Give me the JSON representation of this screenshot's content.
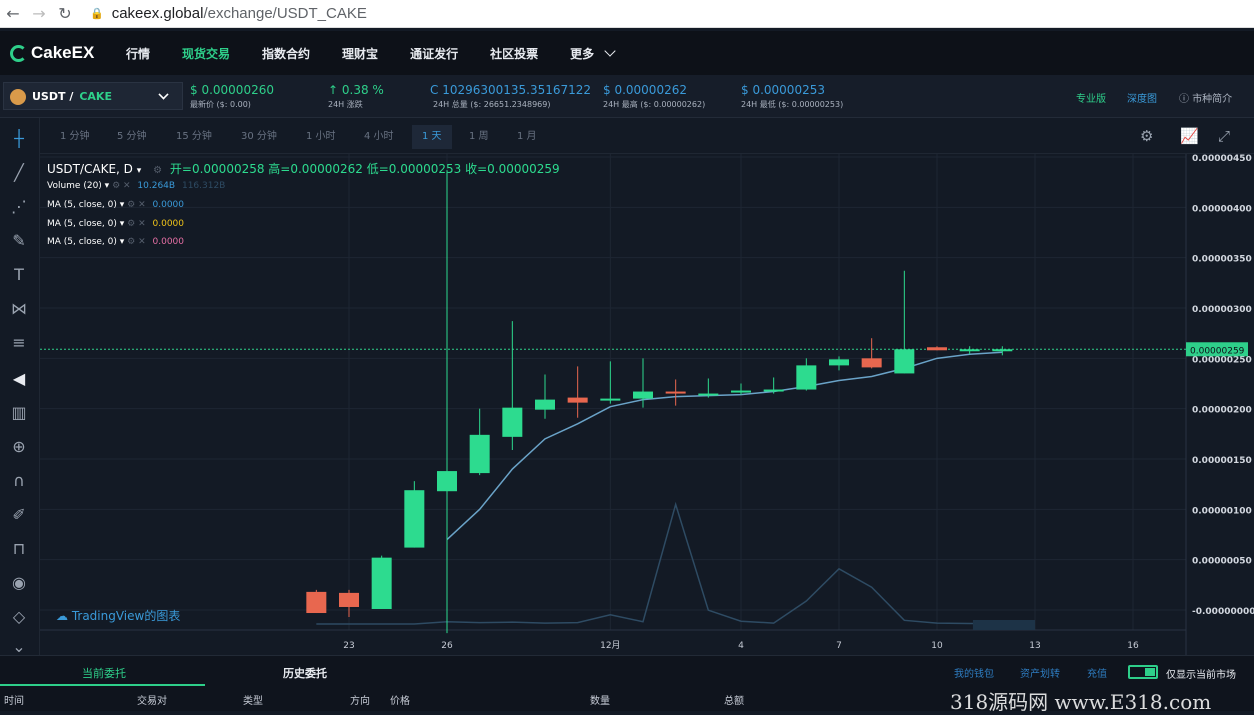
{
  "browser": {
    "domain": "cakeex.global",
    "path": "/exchange/USDT_CAKE"
  },
  "nav": {
    "logo": "CakeEX",
    "items": [
      "行情",
      "现货交易",
      "指数合约",
      "理财宝",
      "通证发行",
      "社区投票",
      "更多"
    ]
  },
  "ticker": {
    "pair_base": "USDT /",
    "pair_quote": "CAKE",
    "last_price": "$ 0.00000260",
    "last_price_label": "最新价 ($: 0.00)",
    "change": "0.38 %",
    "change_label": "24H 涨跌",
    "volume": "C 10296300135.35167122",
    "volume_label": "24H 总量 ($: 26651.2348969)",
    "high": "$ 0.00000262",
    "high_label": "24H 最高 ($: 0.00000262)",
    "low": "$ 0.00000253",
    "low_label": "24H 最低 ($: 0.00000253)",
    "pro": "专业版",
    "depth": "深度图",
    "intro": "市种简介"
  },
  "timeframes": [
    "1 分钟",
    "5 分钟",
    "15 分钟",
    "30 分钟",
    "1 小时",
    "4 小时",
    "1 天",
    "1 周",
    "1 月"
  ],
  "active_timeframe": "1 天",
  "legend": {
    "symbol": "USDT/CAKE, D",
    "ohlc": "开=0.00000258  高=0.00000262  低=0.00000253  收=0.00000259",
    "volume_label": "Volume (20)",
    "volume_value": "10.264B",
    "volume_ma": "116.312B",
    "ma1_label": "MA (5, close, 0)",
    "ma1_value": "0.0000",
    "ma2_label": "MA (5, close, 0)",
    "ma2_value": "0.0000",
    "ma3_label": "MA (5, close, 0)",
    "ma3_value": "0.0000",
    "tradingview": "TradingView的图表"
  },
  "chart_data": {
    "type": "candlestick",
    "y_ticks": [
      "0.00000450",
      "0.00000400",
      "0.00000350",
      "0.00000300",
      "0.00000250",
      "0.00000200",
      "0.00000150",
      "0.00000100",
      "0.00000050",
      "-0.00000000"
    ],
    "y_tick_values": [
      450,
      400,
      350,
      300,
      250,
      200,
      150,
      100,
      50,
      0
    ],
    "x_ticks": [
      "23",
      "26",
      "12月",
      "4",
      "7",
      "10",
      "13",
      "16"
    ],
    "x_tick_days": [
      23,
      26,
      31,
      35,
      38,
      41,
      44,
      47
    ],
    "current_price_label": "0.00000259",
    "current_price": 259,
    "value_unit": "1e-8",
    "ylim": [
      -15,
      450
    ],
    "candles": [
      {
        "day": 22,
        "o": 18,
        "h": 20,
        "l": -3,
        "c": -3
      },
      {
        "day": 23,
        "o": 17,
        "h": 20,
        "l": -7,
        "c": 3
      },
      {
        "day": 24,
        "o": 1,
        "h": 54,
        "l": 1,
        "c": 52
      },
      {
        "day": 25,
        "o": 62,
        "h": 128,
        "l": 62,
        "c": 119
      },
      {
        "day": 26,
        "o": 118,
        "h": 437,
        "l": -23,
        "c": 138
      },
      {
        "day": 27,
        "o": 136,
        "h": 200,
        "l": 134,
        "c": 174
      },
      {
        "day": 28,
        "o": 172,
        "h": 287,
        "l": 159,
        "c": 201
      },
      {
        "day": 29,
        "o": 199,
        "h": 234,
        "l": 190,
        "c": 209
      },
      {
        "day": 30,
        "o": 211,
        "h": 242,
        "l": 191,
        "c": 206
      },
      {
        "day": 31,
        "o": 209,
        "h": 247,
        "l": 205,
        "c": 210
      },
      {
        "day": 32,
        "o": 210,
        "h": 250,
        "l": 201,
        "c": 217
      },
      {
        "day": 33,
        "o": 217,
        "h": 229,
        "l": 203,
        "c": 215
      },
      {
        "day": 34,
        "o": 215,
        "h": 230,
        "l": 211,
        "c": 215
      },
      {
        "day": 35,
        "o": 216,
        "h": 225,
        "l": 214,
        "c": 218
      },
      {
        "day": 36,
        "o": 218,
        "h": 231,
        "l": 215,
        "c": 219
      },
      {
        "day": 37,
        "o": 219,
        "h": 250,
        "l": 218,
        "c": 243
      },
      {
        "day": 38,
        "o": 243,
        "h": 252,
        "l": 238,
        "c": 249
      },
      {
        "day": 39,
        "o": 250,
        "h": 270,
        "l": 240,
        "c": 241
      },
      {
        "day": 40,
        "o": 235,
        "h": 337,
        "l": 235,
        "c": 259
      },
      {
        "day": 41,
        "o": 261,
        "h": 262,
        "l": 258,
        "c": 258
      },
      {
        "day": 42,
        "o": 258,
        "h": 262,
        "l": 254,
        "c": 259
      },
      {
        "day": 43,
        "o": 258,
        "h": 262,
        "l": 253,
        "c": 259
      }
    ],
    "ma_line": [
      {
        "day": 26,
        "v": 70
      },
      {
        "day": 27,
        "v": 100
      },
      {
        "day": 28,
        "v": 140
      },
      {
        "day": 29,
        "v": 170
      },
      {
        "day": 30,
        "v": 185
      },
      {
        "day": 31,
        "v": 202
      },
      {
        "day": 32,
        "v": 209
      },
      {
        "day": 33,
        "v": 212
      },
      {
        "day": 34,
        "v": 213
      },
      {
        "day": 35,
        "v": 214
      },
      {
        "day": 36,
        "v": 217
      },
      {
        "day": 37,
        "v": 222
      },
      {
        "day": 38,
        "v": 228
      },
      {
        "day": 39,
        "v": 232
      },
      {
        "day": 40,
        "v": 240
      },
      {
        "day": 41,
        "v": 250
      },
      {
        "day": 42,
        "v": 254
      },
      {
        "day": 43,
        "v": 256
      }
    ],
    "volume_line": [
      {
        "day": 22,
        "v": 0
      },
      {
        "day": 23,
        "v": 0
      },
      {
        "day": 24,
        "v": 0
      },
      {
        "day": 25,
        "v": 0
      },
      {
        "day": 26,
        "v": 0.5
      },
      {
        "day": 27,
        "v": 0.3
      },
      {
        "day": 28,
        "v": 0.4
      },
      {
        "day": 29,
        "v": 0.2
      },
      {
        "day": 30,
        "v": 0.3
      },
      {
        "day": 31,
        "v": 2
      },
      {
        "day": 32,
        "v": 0.5
      },
      {
        "day": 33,
        "v": 26
      },
      {
        "day": 34,
        "v": 3
      },
      {
        "day": 35,
        "v": 0.6
      },
      {
        "day": 36,
        "v": 0.2
      },
      {
        "day": 37,
        "v": 5
      },
      {
        "day": 38,
        "v": 12
      },
      {
        "day": 39,
        "v": 8
      },
      {
        "day": 40,
        "v": 0.8
      },
      {
        "day": 41,
        "v": 0.2
      },
      {
        "day": 42,
        "v": 0.1
      },
      {
        "day": 43,
        "v": 0.1
      }
    ],
    "colors": {
      "up": "#2ddb8f",
      "down": "#e8674f",
      "ma": "#6aa3c8",
      "volume": "#2e4b63",
      "grid": "#1e2633",
      "price_line": "#2ecf8a"
    }
  },
  "bottom": {
    "tab_current": "当前委托",
    "tab_history": "历史委托",
    "links": [
      "我的钱包",
      "资产划转",
      "充值"
    ],
    "only_current": "仅显示当前市场",
    "columns": [
      "时间",
      "交易对",
      "类型",
      "方向",
      "价格",
      "数量",
      "总额"
    ],
    "watermark": "318源码网 www.E318.com"
  }
}
